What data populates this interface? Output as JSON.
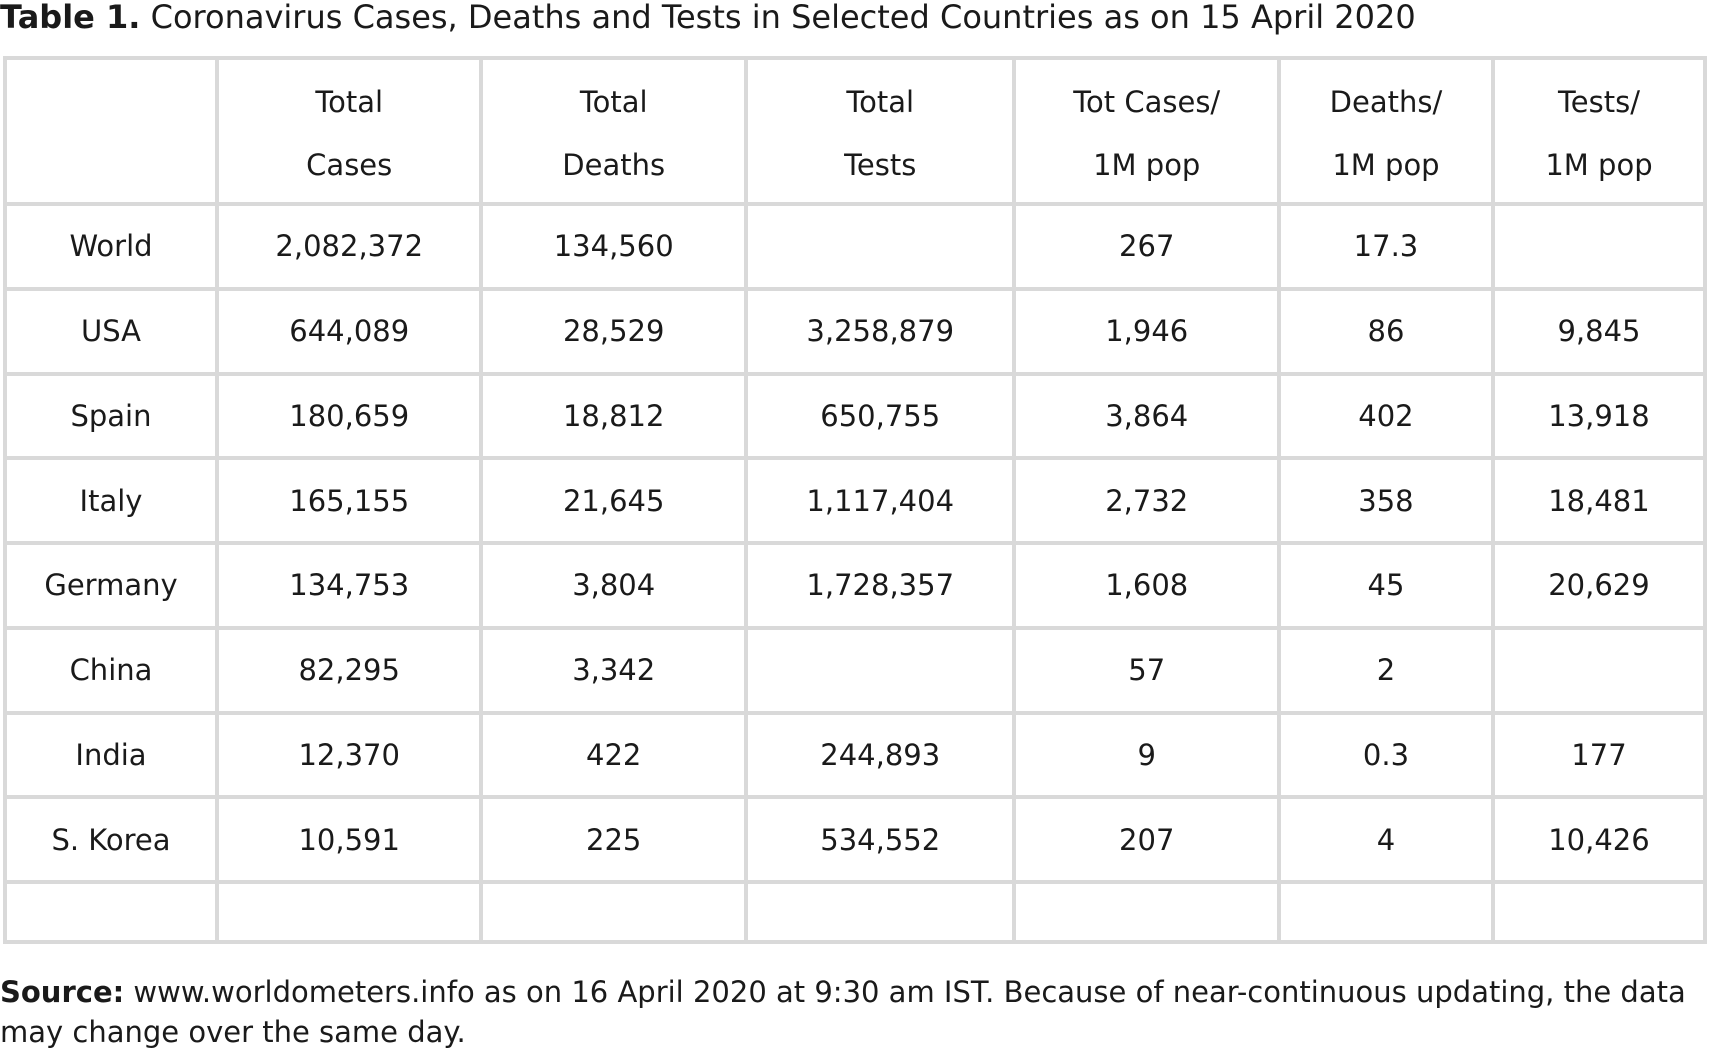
{
  "caption": {
    "label": "Table 1.",
    "text": " Coronavirus Cases, Deaths and Tests in Selected Countries as on 15 April 2020"
  },
  "headers": [
    [
      "",
      ""
    ],
    [
      "Total",
      "Cases"
    ],
    [
      "Total",
      "Deaths"
    ],
    [
      "Total",
      "Tests"
    ],
    [
      "Tot Cases/",
      "1M pop"
    ],
    [
      "Deaths/",
      "1M pop"
    ],
    [
      "Tests/",
      "1M pop"
    ]
  ],
  "rows": [
    [
      "World",
      "2,082,372",
      "134,560",
      "",
      "267",
      "17.3",
      ""
    ],
    [
      "USA",
      "644,089",
      "28,529",
      "3,258,879",
      "1,946",
      "86",
      "9,845"
    ],
    [
      "Spain",
      "180,659",
      "18,812",
      "650,755",
      "3,864",
      "402",
      "13,918"
    ],
    [
      "Italy",
      "165,155",
      "21,645",
      "1,117,404",
      "2,732",
      "358",
      "18,481"
    ],
    [
      "Germany",
      "134,753",
      "3,804",
      "1,728,357",
      "1,608",
      "45",
      "20,629"
    ],
    [
      "China",
      "82,295",
      "3,342",
      "",
      "57",
      "2",
      ""
    ],
    [
      "India",
      "12,370",
      "422",
      "244,893",
      "9",
      "0.3",
      "177"
    ],
    [
      "S. Korea",
      "10,591",
      "225",
      "534,552",
      "207",
      "4",
      "10,426"
    ],
    [
      "",
      "",
      "",
      "",
      "",
      "",
      ""
    ]
  ],
  "source": {
    "label": "Source:",
    "text": " www.worldometers.info as on 16 April 2020 at 9:30 am IST. Because of near-continuous updating, the data may change over the same day."
  }
}
